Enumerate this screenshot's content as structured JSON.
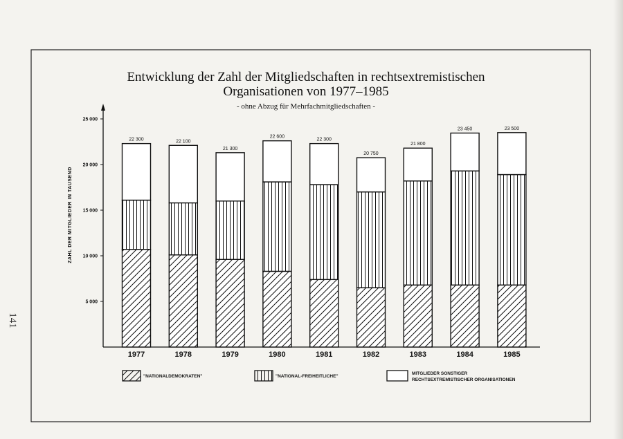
{
  "page_number": "141",
  "chart_data": {
    "type": "bar",
    "stacked": true,
    "title": "Entwicklung der Zahl der Mitgliedschaften in rechtsextremistischen Organisationen von 1977–1985",
    "title_line1": "Entwicklung der Zahl der Mitgliedschaften in rechtsextremistischen",
    "title_line2": "Organisationen von 1977–1985",
    "subtitle": "- ohne Abzug für Mehrfachmitgliedschaften -",
    "ylabel": "ZAHL DER MITGLIEDER IN TAUSEND",
    "xlabel": "",
    "ylim": [
      0,
      25000
    ],
    "yticks": [
      5000,
      10000,
      15000,
      20000,
      25000
    ],
    "ytick_labels": [
      "5 000",
      "10 000",
      "15 000",
      "20 000",
      "25 000"
    ],
    "categories": [
      "1977",
      "1978",
      "1979",
      "1980",
      "1981",
      "1982",
      "1983",
      "1984",
      "1985"
    ],
    "series": [
      {
        "name": "\"NATIONALDEMOKRATEN\"",
        "pattern": "diagonal",
        "values": [
          10700,
          10100,
          9600,
          8300,
          7400,
          6500,
          6800,
          6800,
          6800
        ]
      },
      {
        "name": "\"NATIONAL-FREIHEITLICHE\"",
        "pattern": "vertical",
        "values": [
          5400,
          5700,
          6400,
          9800,
          10400,
          10500,
          11400,
          12500,
          12100
        ]
      },
      {
        "name": "MITGLIEDER SONSTIGER RECHTSEXTREMISTISCHER ORGANISATIONEN",
        "pattern": "empty",
        "values": [
          6200,
          6300,
          5300,
          4500,
          4500,
          3750,
          3600,
          4150,
          4600
        ]
      }
    ],
    "totals": [
      22300,
      22100,
      21300,
      22600,
      22300,
      20750,
      21800,
      23450,
      23500
    ],
    "total_labels": [
      "22 300",
      "22 100",
      "21 300",
      "22 600",
      "22 300",
      "20 750",
      "21 800",
      "23 450",
      "23 500"
    ],
    "legend": {
      "placement": "bottom",
      "items": [
        {
          "label": "\"NATIONALDEMOKRATEN\"",
          "pattern": "diagonal"
        },
        {
          "label": "\"NATIONAL-FREIHEITLICHE\"",
          "pattern": "vertical"
        },
        {
          "label_line1": "MITGLIEDER SONSTIGER",
          "label_line2": "RECHTSEXTREMISTISCHER ORGANISATIONEN",
          "pattern": "empty"
        }
      ]
    },
    "grid": false
  }
}
